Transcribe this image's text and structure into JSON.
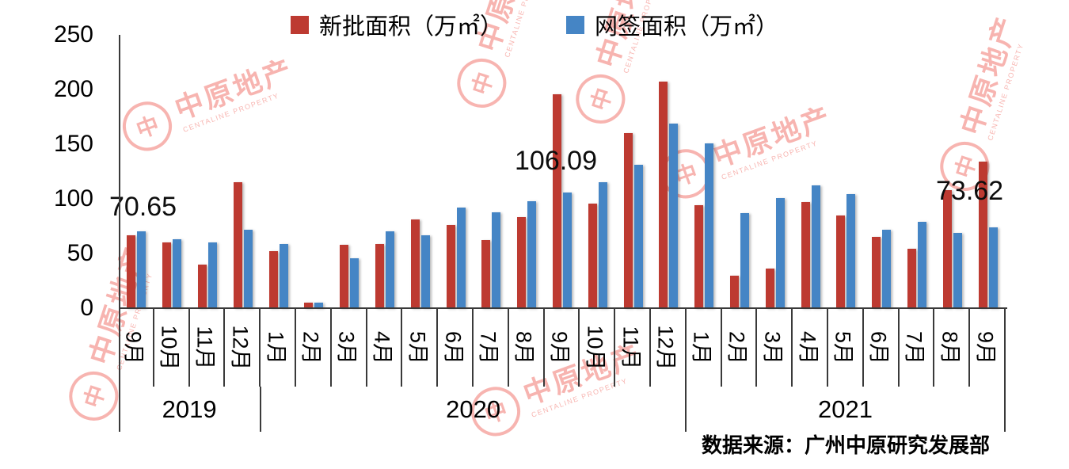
{
  "source": {
    "text": "数据来源：广州中原研究发展部"
  },
  "watermark": {
    "symbol": "中",
    "name": "中原地产",
    "subtitle": "CENTALINE PROPERTY"
  },
  "chart_data": {
    "type": "bar",
    "title": "",
    "legend_position": "top",
    "grid": false,
    "ylabel": "",
    "xlabel": "",
    "ylim": [
      0,
      250
    ],
    "y_ticks": [
      250,
      200,
      150,
      100,
      50,
      0
    ],
    "categories": [
      "9月",
      "10月",
      "11月",
      "12月",
      "1月",
      "2月",
      "3月",
      "4月",
      "5月",
      "6月",
      "7月",
      "8月",
      "9月",
      "10月",
      "11月",
      "12月",
      "1月",
      "2月",
      "3月",
      "4月",
      "5月",
      "6月",
      "7月",
      "8月",
      "9月"
    ],
    "year_groups": [
      {
        "label": "2019",
        "months": 4
      },
      {
        "label": "2020",
        "months": 12
      },
      {
        "label": "2021",
        "months": 9
      }
    ],
    "series": [
      {
        "name": "新批面积（万㎡）",
        "color": "#bd3a31",
        "values": [
          67,
          60,
          40,
          115,
          52,
          5,
          58,
          59,
          81,
          76,
          62,
          83,
          196,
          96,
          160,
          207,
          94,
          30,
          36,
          97,
          85,
          65,
          54,
          108,
          134
        ]
      },
      {
        "name": "网签面积（万㎡）",
        "color": "#4585c5",
        "values": [
          70.65,
          63,
          60,
          72,
          59,
          5,
          46,
          70,
          67,
          92,
          88,
          98,
          106.09,
          115,
          131,
          169,
          151,
          87,
          101,
          112,
          104,
          72,
          79,
          69,
          73.62
        ]
      }
    ],
    "annotations": [
      {
        "text": "70.65",
        "series": "网签面积（万㎡）",
        "category": "2019-9月"
      },
      {
        "text": "106.09",
        "series": "网签面积（万㎡）",
        "category": "2020-9月"
      },
      {
        "text": "73.62",
        "series": "网签面积（万㎡）",
        "category": "2021-9月"
      }
    ]
  }
}
